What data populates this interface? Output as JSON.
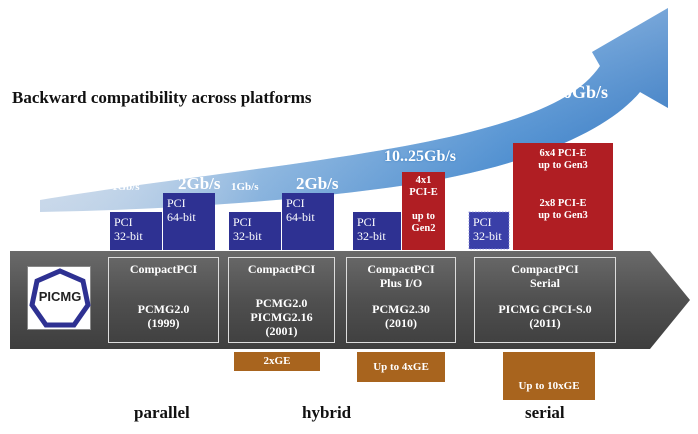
{
  "title": "Backward compatibility across platforms",
  "logo": {
    "text": "PICMG"
  },
  "speeds": {
    "s1_small": "1Gb/s",
    "s1_big": "2Gb/s",
    "s2_small": "1Gb/s",
    "s2_big": "2Gb/s",
    "s3": "10..25Gb/s",
    "s4": "Up to 600Gb/s"
  },
  "platforms": [
    {
      "name": "CompactPCI",
      "spec": "PCMG2.0",
      "year": "(1999)",
      "buses": [
        {
          "line1": "PCI",
          "line2": "32-bit"
        },
        {
          "line1": "PCI",
          "line2": "64-bit"
        }
      ]
    },
    {
      "name": "CompactPCI",
      "spec": "PCMG2.0",
      "spec2": "PICMG2.16",
      "year": "(2001)",
      "buses": [
        {
          "line1": "PCI",
          "line2": "32-bit"
        },
        {
          "line1": "PCI",
          "line2": "64-bit"
        }
      ],
      "ethernet": "2xGE"
    },
    {
      "name": "CompactPCI",
      "name2": "Plus I/O",
      "spec": "PCMG2.30",
      "year": "(2010)",
      "buses": [
        {
          "line1": "PCI",
          "line2": "32-bit"
        }
      ],
      "pcie": {
        "line1": "4x1",
        "line2": "PCI-E",
        "line3": "up to",
        "line4": "Gen2"
      },
      "ethernet": "Up to 4xGE"
    },
    {
      "name": "CompactPCI",
      "name2": "Serial",
      "spec": "PICMG CPCI-S.0",
      "year": "(2011)",
      "buses": [
        {
          "line1": "PCI",
          "line2": "32-bit"
        }
      ],
      "pcie": {
        "line1": "6x4 PCI-E",
        "line2": "up to Gen3",
        "line3": "2x8 PCI-E",
        "line4": "up to Gen3"
      },
      "ethernet": "Up to 10xGE"
    }
  ],
  "eras": [
    "parallel",
    "hybrid",
    "serial"
  ],
  "colors": {
    "pci_bus": "#2e3192",
    "pcie": "#b01e23",
    "ethernet": "#a8641e",
    "platform_bar": "#555555",
    "arrow": "#4a90d9"
  }
}
